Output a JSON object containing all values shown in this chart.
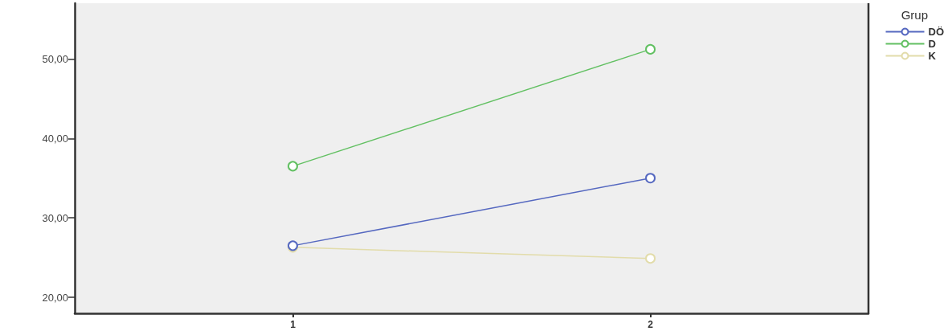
{
  "chart_data": {
    "type": "line",
    "legend_title": "Grup",
    "legend": "top right",
    "marker": "circle",
    "line_style": "solid",
    "grid": false,
    "x": [
      1,
      2
    ],
    "xlim": [
      0.39,
      2.61
    ],
    "xticks": [
      1,
      2
    ],
    "ylim": [
      18,
      57
    ],
    "yticks": [
      {
        "value": 20,
        "label": "20,00"
      },
      {
        "value": 30,
        "label": "30,00"
      },
      {
        "value": 40,
        "label": "40,00"
      },
      {
        "value": 50,
        "label": "50,00"
      }
    ],
    "series": [
      {
        "name": "DÖ",
        "color": "#5568c0",
        "values": [
          26.5,
          35.0
        ]
      },
      {
        "name": "D",
        "color": "#62c062",
        "values": [
          36.5,
          51.2
        ]
      },
      {
        "name": "K",
        "color": "#e2dcaa",
        "values": [
          26.3,
          24.9
        ]
      }
    ]
  }
}
